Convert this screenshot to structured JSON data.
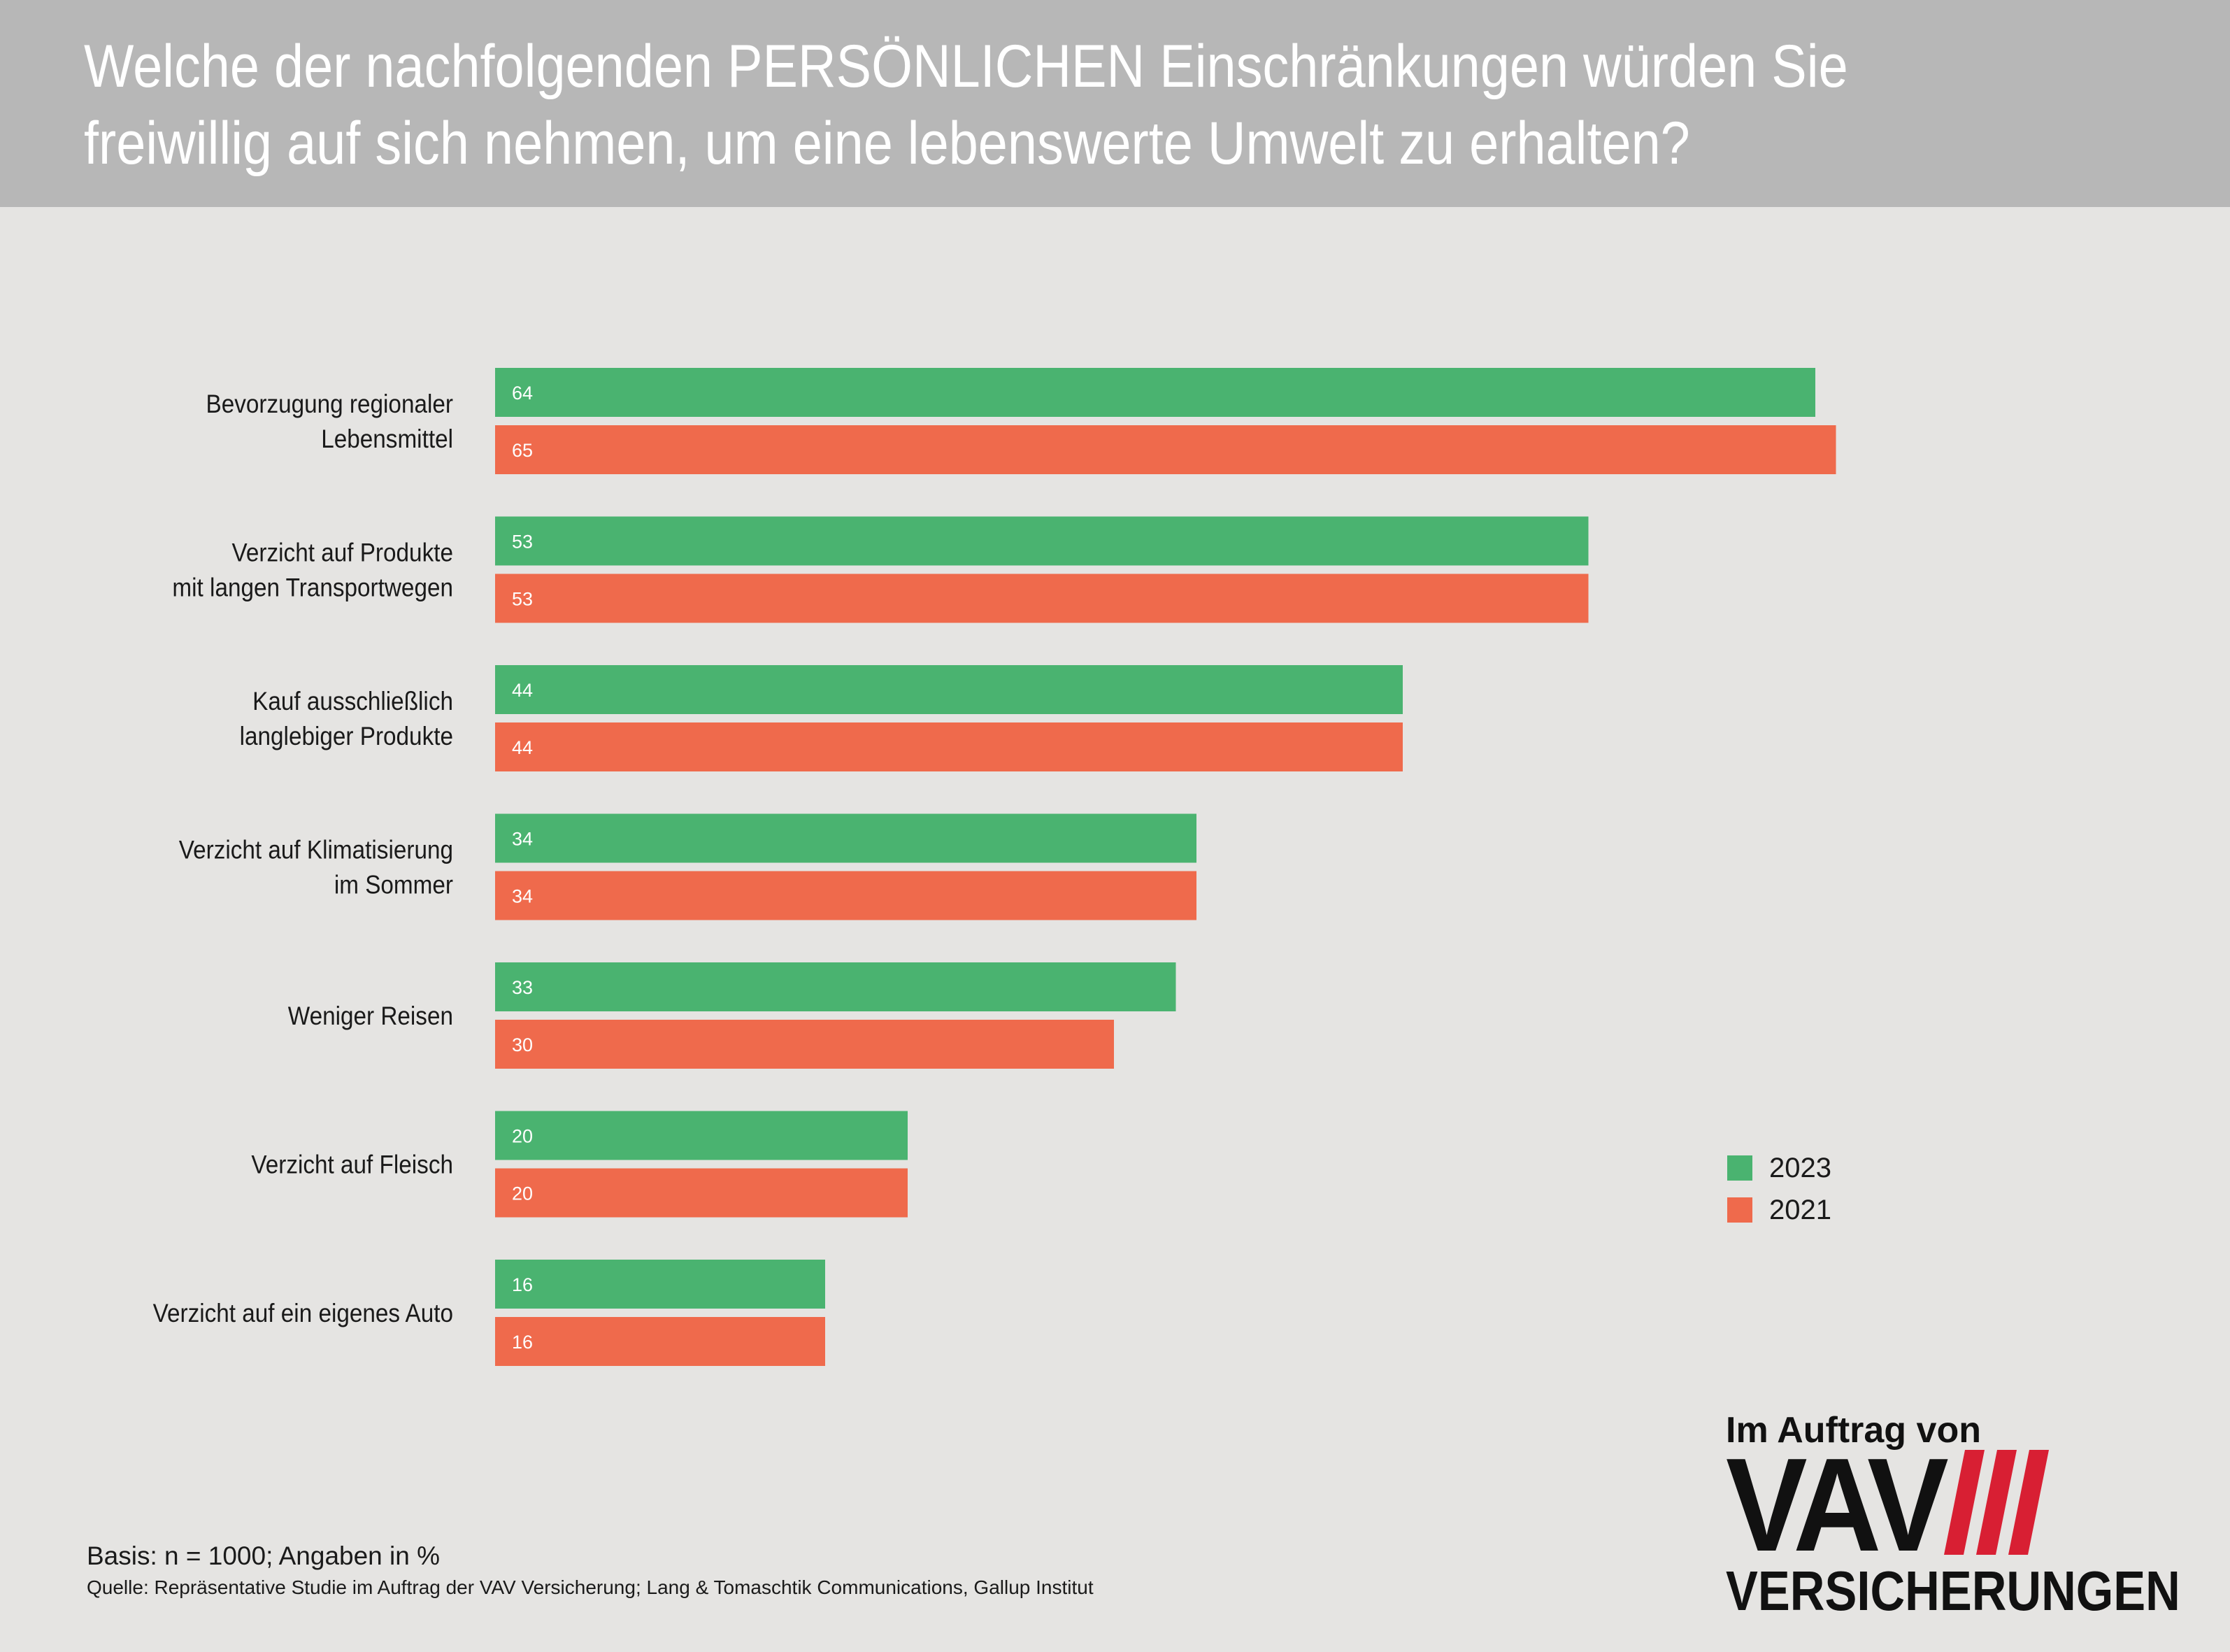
{
  "header": {
    "title_line1": "Welche der nachfolgenden PERSÖNLICHEN Einschränkungen würden Sie",
    "title_line2": "freiwillig auf sich nehmen, um eine lebenswerte Umwelt zu erhalten?"
  },
  "colors": {
    "series_2023": "#4ab370",
    "series_2021": "#ef6a4c",
    "header_bg": "#b7b7b7",
    "background": "#e5e4e2",
    "logo_accent": "#d81f33"
  },
  "chart_data": {
    "type": "bar",
    "orientation": "horizontal",
    "categories": [
      [
        "Bevorzugung regionaler",
        "Lebensmittel"
      ],
      [
        "Verzicht auf Produkte",
        "mit langen Transportwegen"
      ],
      [
        "Kauf ausschließlich",
        "langlebiger Produkte"
      ],
      [
        "Verzicht auf Klimatisierung",
        "im Sommer"
      ],
      [
        "Weniger Reisen"
      ],
      [
        "Verzicht auf Fleisch"
      ],
      [
        "Verzicht auf ein eigenes Auto"
      ]
    ],
    "series": [
      {
        "name": "2023",
        "values": [
          64,
          53,
          44,
          34,
          33,
          20,
          16
        ]
      },
      {
        "name": "2021",
        "values": [
          65,
          53,
          44,
          34,
          30,
          20,
          16
        ]
      }
    ],
    "xlim": [
      0,
      100
    ],
    "grid": false,
    "legend_position": "right"
  },
  "legend": {
    "items": [
      {
        "label": "2023"
      },
      {
        "label": "2021"
      }
    ]
  },
  "footer": {
    "basis": "Basis: n = 1000; Angaben in %",
    "source": "Quelle: Repräsentative Studie im Auftrag der VAV Versicherung; Lang & Tomaschtik Communications, Gallup Institut"
  },
  "logo": {
    "top_text": "Im Auftrag von",
    "main_text": "VAV",
    "bottom_text": "VERSICHERUNGEN"
  }
}
